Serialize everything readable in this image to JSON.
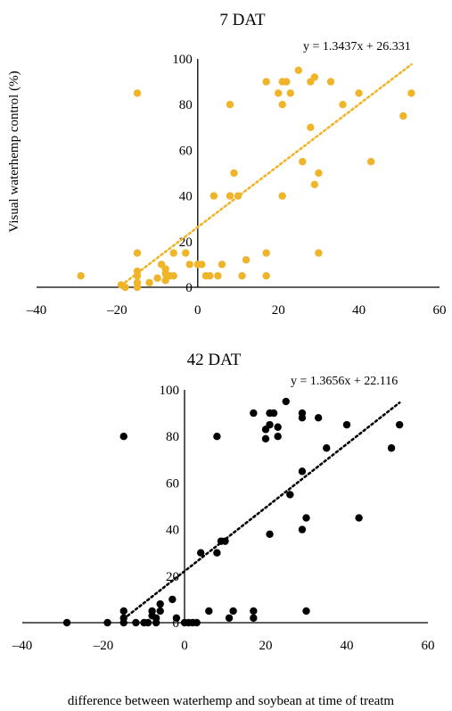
{
  "y_axis_label": "Visual waterhemp control (%)",
  "x_axis_label": "difference between waterhemp and soybean at time of treatm",
  "chart_data": [
    {
      "type": "scatter",
      "title": "7 DAT",
      "trendline": {
        "label": "y = 1.3437x + 26.331",
        "slope": 1.3437,
        "intercept": 26.331,
        "x_range": [
          -18,
          53
        ]
      },
      "xlim": [
        -40,
        60
      ],
      "ylim": [
        0,
        100
      ],
      "x_ticks": [
        "–40",
        "–20",
        "0",
        "20",
        "40",
        "60"
      ],
      "y_ticks": [
        "0",
        "20",
        "40",
        "60",
        "80",
        "100"
      ],
      "color": "#f0b429",
      "points": [
        [
          -15,
          85
        ],
        [
          17,
          90
        ],
        [
          20,
          85
        ],
        [
          21,
          90
        ],
        [
          22,
          90
        ],
        [
          23,
          85
        ],
        [
          25,
          95
        ],
        [
          28,
          90
        ],
        [
          29,
          92
        ],
        [
          33,
          90
        ],
        [
          40,
          85
        ],
        [
          53,
          85
        ],
        [
          8,
          80
        ],
        [
          21,
          80
        ],
        [
          36,
          80
        ],
        [
          51,
          75
        ],
        [
          28,
          70
        ],
        [
          26,
          55
        ],
        [
          43,
          55
        ],
        [
          9,
          50
        ],
        [
          30,
          50
        ],
        [
          29,
          45
        ],
        [
          4,
          40
        ],
        [
          8,
          40
        ],
        [
          10,
          40
        ],
        [
          21,
          40
        ],
        [
          -29,
          5
        ],
        [
          -19,
          1
        ],
        [
          -18,
          0
        ],
        [
          -15,
          15
        ],
        [
          -15,
          7
        ],
        [
          -15,
          5
        ],
        [
          -15,
          2
        ],
        [
          -15,
          0
        ],
        [
          -12,
          2
        ],
        [
          -10,
          4
        ],
        [
          -9,
          10
        ],
        [
          -8,
          8
        ],
        [
          -8,
          6
        ],
        [
          -8,
          3
        ],
        [
          -7,
          5
        ],
        [
          -6,
          15
        ],
        [
          -6,
          5
        ],
        [
          -3,
          15
        ],
        [
          -2,
          10
        ],
        [
          0,
          10
        ],
        [
          1,
          10
        ],
        [
          2,
          5
        ],
        [
          3,
          5
        ],
        [
          5,
          5
        ],
        [
          6,
          10
        ],
        [
          11,
          5
        ],
        [
          12,
          12
        ],
        [
          17,
          15
        ],
        [
          17,
          5
        ],
        [
          30,
          15
        ]
      ]
    },
    {
      "type": "scatter",
      "title": "42 DAT",
      "trendline": {
        "label": "y = 1.3656x + 22.116",
        "slope": 1.3656,
        "intercept": 22.116,
        "x_range": [
          -14,
          53
        ]
      },
      "xlim": [
        -40,
        60
      ],
      "ylim": [
        0,
        100
      ],
      "x_ticks": [
        "–40",
        "–20",
        "0",
        "20",
        "40",
        "60"
      ],
      "y_ticks": [
        "0",
        "20",
        "40",
        "60",
        "80",
        "100"
      ],
      "color": "#000000",
      "points": [
        [
          -15,
          80
        ],
        [
          8,
          80
        ],
        [
          17,
          90
        ],
        [
          20,
          83
        ],
        [
          20,
          79
        ],
        [
          21,
          85
        ],
        [
          21,
          90
        ],
        [
          22,
          90
        ],
        [
          23,
          80
        ],
        [
          23,
          84
        ],
        [
          25,
          95
        ],
        [
          29,
          88
        ],
        [
          29,
          90
        ],
        [
          33,
          88
        ],
        [
          35,
          75
        ],
        [
          40,
          85
        ],
        [
          51,
          75
        ],
        [
          53,
          85
        ],
        [
          29,
          65
        ],
        [
          26,
          55
        ],
        [
          9,
          35
        ],
        [
          10,
          35
        ],
        [
          4,
          30
        ],
        [
          8,
          30
        ],
        [
          21,
          38
        ],
        [
          29,
          40
        ],
        [
          30,
          45
        ],
        [
          43,
          45
        ],
        [
          -29,
          0
        ],
        [
          -19,
          0
        ],
        [
          -15,
          5
        ],
        [
          -15,
          2
        ],
        [
          -15,
          0
        ],
        [
          -12,
          0
        ],
        [
          -10,
          0
        ],
        [
          -9,
          0
        ],
        [
          -8,
          5
        ],
        [
          -8,
          3
        ],
        [
          -7,
          0
        ],
        [
          -7,
          2
        ],
        [
          -6,
          5
        ],
        [
          -6,
          8
        ],
        [
          -3,
          10
        ],
        [
          -2,
          2
        ],
        [
          0,
          0
        ],
        [
          1,
          0
        ],
        [
          2,
          0
        ],
        [
          3,
          0
        ],
        [
          6,
          5
        ],
        [
          11,
          2
        ],
        [
          12,
          5
        ],
        [
          17,
          5
        ],
        [
          17,
          2
        ],
        [
          30,
          5
        ]
      ]
    }
  ]
}
